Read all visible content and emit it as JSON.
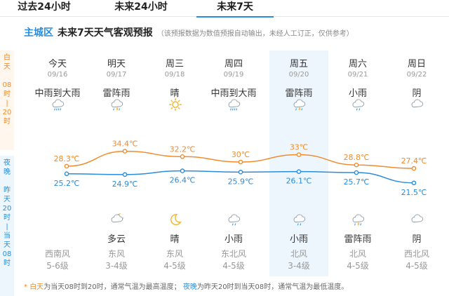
{
  "tabs": [
    {
      "label": "过去24小时"
    },
    {
      "label": "未来24小时"
    },
    {
      "label": "未来7天"
    }
  ],
  "header": {
    "district": "主城区",
    "title": "未来7天天气客观预报",
    "note": "（该预报数据为数值预报自动输出，未经人工订正，仅供参考）"
  },
  "sidebar": {
    "day": [
      "白",
      "天",
      "",
      "08",
      "时",
      "|",
      "20",
      "时"
    ],
    "night": [
      "夜",
      "晚",
      "",
      "昨",
      "天",
      "20",
      "时",
      "|",
      "当",
      "天",
      "08",
      "时"
    ]
  },
  "days": [
    {
      "day": "今天",
      "date": "09/16",
      "weather_day": "中雨到大雨",
      "icon_day": "heavy-rain-icon",
      "weather_night": "",
      "icon_night": "",
      "wind_dir": "西南风",
      "wind_level": "5-6级"
    },
    {
      "day": "明天",
      "date": "09/17",
      "weather_day": "雷阵雨",
      "icon_day": "thunderstorm-icon",
      "weather_night": "多云",
      "icon_night": "cloudy-night-icon",
      "wind_dir": "东风",
      "wind_level": "3-4级"
    },
    {
      "day": "周三",
      "date": "09/18",
      "weather_day": "晴",
      "icon_day": "sun-icon",
      "weather_night": "晴",
      "icon_night": "moon-icon",
      "wind_dir": "东风",
      "wind_level": "4-5级"
    },
    {
      "day": "周四",
      "date": "09/19",
      "weather_day": "中雨到大雨",
      "icon_day": "heavy-rain-icon",
      "weather_night": "小雨",
      "icon_night": "light-rain-icon",
      "wind_dir": "东北风",
      "wind_level": "4-5级"
    },
    {
      "day": "周五",
      "date": "09/20",
      "weather_day": "雷阵雨",
      "icon_day": "thunderstorm-icon",
      "weather_night": "小雨",
      "icon_night": "light-rain-icon",
      "wind_dir": "北风",
      "wind_level": "3-4级"
    },
    {
      "day": "周六",
      "date": "09/21",
      "weather_day": "小雨",
      "icon_day": "light-rain-icon",
      "weather_night": "雷阵雨",
      "icon_night": "thunderstorm-icon",
      "wind_dir": "北风",
      "wind_level": "4-5级"
    },
    {
      "day": "周日",
      "date": "09/22",
      "weather_day": "阴",
      "icon_day": "overcast-icon",
      "weather_night": "阴",
      "icon_night": "overcast-icon",
      "wind_dir": "西北风",
      "wind_level": "4-5级"
    }
  ],
  "chart_data": {
    "type": "line",
    "categories": [
      "09/16",
      "09/17",
      "09/18",
      "09/19",
      "09/20",
      "09/21",
      "09/22"
    ],
    "series": [
      {
        "name": "白天",
        "values": [
          28.3,
          34.4,
          32.2,
          30,
          33,
          28.8,
          27.4
        ],
        "labels": [
          "28.3℃",
          "34.4℃",
          "32.2℃",
          "30℃",
          "33℃",
          "28.8℃",
          "27.4℃"
        ],
        "color": "#f08c2e"
      },
      {
        "name": "夜晚",
        "values": [
          25.2,
          24.9,
          26.4,
          25.9,
          26.1,
          25.7,
          21.5
        ],
        "labels": [
          "25.2℃",
          "24.9℃",
          "26.4℃",
          "25.9℃",
          "26.1℃",
          "25.7℃",
          "21.5℃"
        ],
        "color": "#2a8ddb"
      }
    ]
  },
  "colors": {
    "day": "#f08c2e",
    "night": "#2a8ddb",
    "accent": "#2a8ddb",
    "highlight": "#eef6fd"
  },
  "footer": {
    "star": "*",
    "day_key": "白天",
    "day_text": "为当天08时到20时，通常气温为最高温度；",
    "night_key": "夜晚",
    "night_text": "为昨天20时到当天08时，通常气温为最低温度。"
  }
}
